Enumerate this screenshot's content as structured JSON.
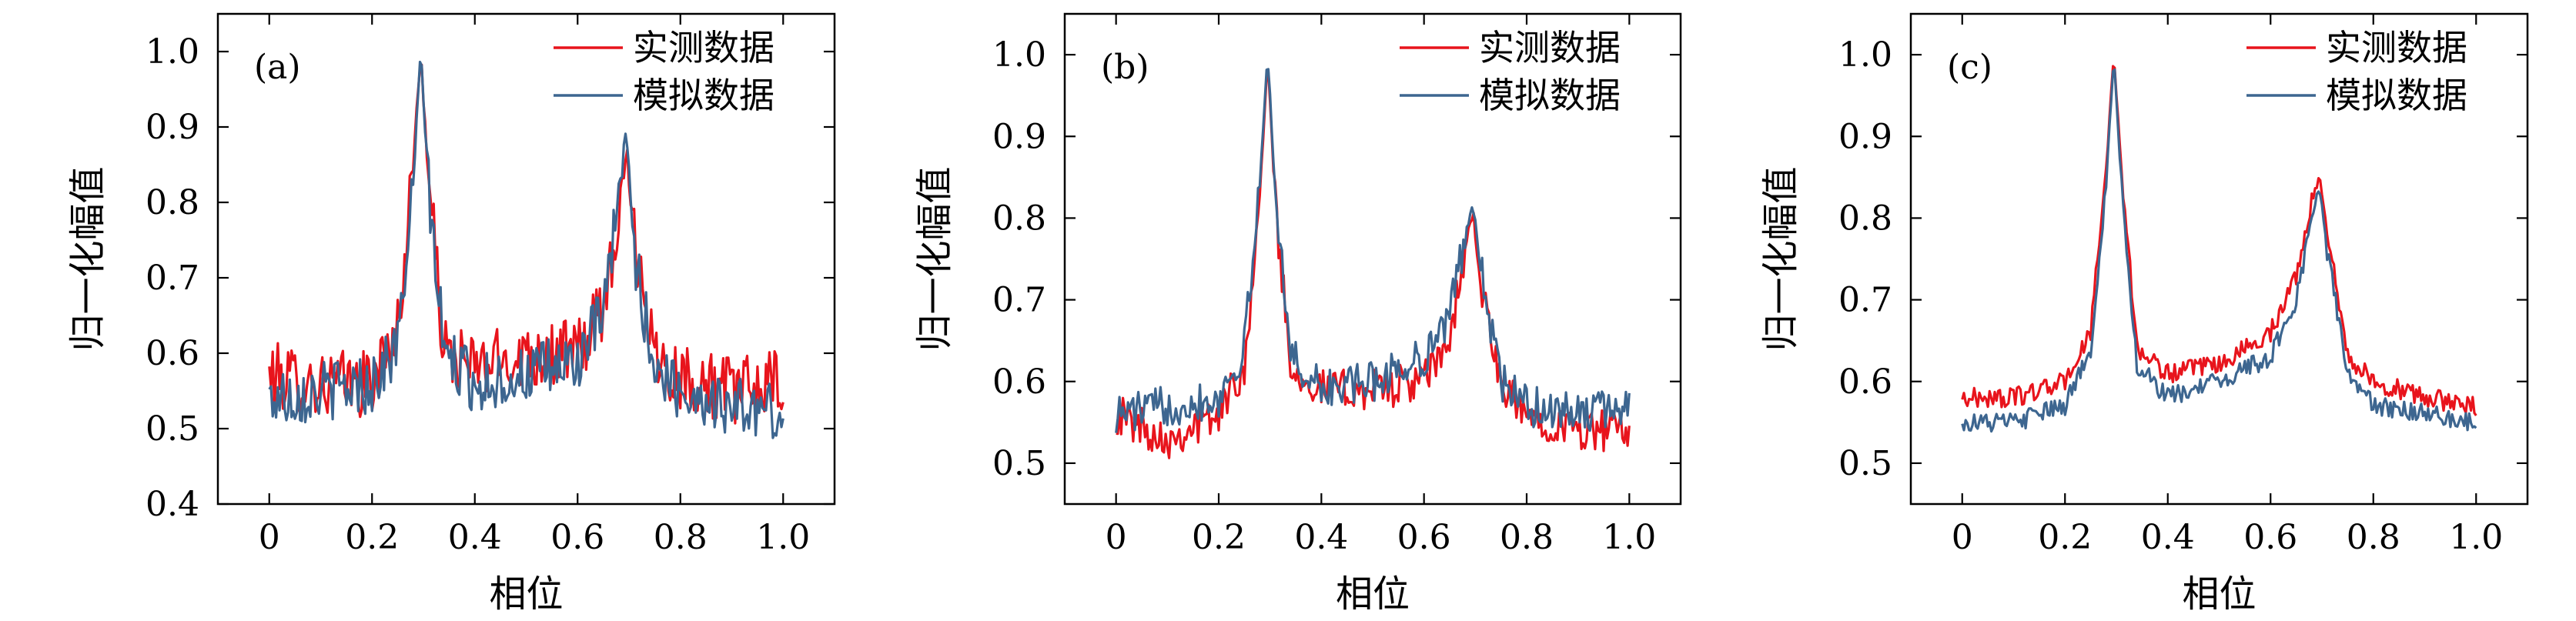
{
  "colors": {
    "measured": "#e8141c",
    "simulated": "#3d6690"
  },
  "chart_data": [
    {
      "type": "line",
      "panel_label": "(a)",
      "xlabel": "相位",
      "ylabel": "归一化幅值",
      "xlim": [
        -0.1,
        1.1
      ],
      "ylim": [
        0.4,
        1.05
      ],
      "xticks": [
        0,
        0.2,
        0.4,
        0.6,
        0.8,
        1.0
      ],
      "xtick_labels": [
        "0",
        "0.2",
        "0.4",
        "0.6",
        "0.8",
        "1.0"
      ],
      "yticks": [
        0.4,
        0.5,
        0.6,
        0.7,
        0.8,
        0.9,
        1.0
      ],
      "ytick_labels": [
        "0.4",
        "0.5",
        "0.6",
        "0.7",
        "0.8",
        "0.9",
        "1.0"
      ],
      "legend": [
        "实测数据",
        "模拟数据"
      ],
      "legend_position": "top-right",
      "series": [
        {
          "name": "实测数据",
          "x": [
            0,
            0.1,
            0.2,
            0.25,
            0.28,
            0.295,
            0.31,
            0.34,
            0.4,
            0.5,
            0.6,
            0.65,
            0.68,
            0.695,
            0.71,
            0.75,
            0.8,
            0.9,
            1.0
          ],
          "y": [
            0.57,
            0.56,
            0.56,
            0.63,
            0.85,
            1.0,
            0.83,
            0.6,
            0.58,
            0.6,
            0.6,
            0.66,
            0.79,
            0.87,
            0.76,
            0.6,
            0.57,
            0.55,
            0.56
          ]
        },
        {
          "name": "模拟数据",
          "x": [
            0,
            0.1,
            0.2,
            0.25,
            0.28,
            0.295,
            0.31,
            0.34,
            0.4,
            0.5,
            0.6,
            0.65,
            0.68,
            0.695,
            0.71,
            0.75,
            0.8,
            0.9,
            1.0
          ],
          "y": [
            0.54,
            0.55,
            0.56,
            0.61,
            0.82,
            1.0,
            0.82,
            0.6,
            0.56,
            0.57,
            0.59,
            0.65,
            0.8,
            0.9,
            0.73,
            0.58,
            0.55,
            0.53,
            0.52
          ]
        }
      ]
    },
    {
      "type": "line",
      "panel_label": "(b)",
      "xlabel": "相位",
      "ylabel": "归一化幅值",
      "xlim": [
        -0.1,
        1.1
      ],
      "ylim": [
        0.45,
        1.05
      ],
      "xticks": [
        0,
        0.2,
        0.4,
        0.6,
        0.8,
        1.0
      ],
      "xtick_labels": [
        "0",
        "0.2",
        "0.4",
        "0.6",
        "0.8",
        "1.0"
      ],
      "yticks": [
        0.5,
        0.6,
        0.7,
        0.8,
        0.9,
        1.0
      ],
      "ytick_labels": [
        "0.5",
        "0.6",
        "0.7",
        "0.8",
        "0.9",
        "1.0"
      ],
      "legend": [
        "实测数据",
        "模拟数据"
      ],
      "legend_position": "top-right",
      "series": [
        {
          "name": "实测数据",
          "x": [
            0,
            0.1,
            0.2,
            0.25,
            0.28,
            0.295,
            0.31,
            0.34,
            0.4,
            0.5,
            0.6,
            0.65,
            0.68,
            0.695,
            0.71,
            0.75,
            0.8,
            0.9,
            1.0
          ],
          "y": [
            0.56,
            0.53,
            0.56,
            0.62,
            0.82,
            1.0,
            0.82,
            0.62,
            0.59,
            0.59,
            0.6,
            0.65,
            0.76,
            0.81,
            0.72,
            0.59,
            0.56,
            0.54,
            0.54
          ]
        },
        {
          "name": "模拟数据",
          "x": [
            0,
            0.1,
            0.2,
            0.25,
            0.28,
            0.295,
            0.31,
            0.34,
            0.4,
            0.5,
            0.6,
            0.65,
            0.68,
            0.695,
            0.71,
            0.75,
            0.8,
            0.9,
            1.0
          ],
          "y": [
            0.56,
            0.57,
            0.58,
            0.64,
            0.84,
            1.0,
            0.84,
            0.63,
            0.59,
            0.6,
            0.63,
            0.68,
            0.78,
            0.82,
            0.74,
            0.6,
            0.57,
            0.56,
            0.57
          ]
        }
      ]
    },
    {
      "type": "line",
      "panel_label": "(c)",
      "xlabel": "相位",
      "ylabel": "归一化幅值",
      "xlim": [
        -0.1,
        1.1
      ],
      "ylim": [
        0.45,
        1.05
      ],
      "xticks": [
        0,
        0.2,
        0.4,
        0.6,
        0.8,
        1.0
      ],
      "xtick_labels": [
        "0",
        "0.2",
        "0.4",
        "0.6",
        "0.8",
        "1.0"
      ],
      "yticks": [
        0.5,
        0.6,
        0.7,
        0.8,
        0.9,
        1.0
      ],
      "ytick_labels": [
        "0.5",
        "0.6",
        "0.7",
        "0.8",
        "0.9",
        "1.0"
      ],
      "legend": [
        "实测数据",
        "模拟数据"
      ],
      "legend_position": "top-right",
      "series": [
        {
          "name": "实测数据",
          "x": [
            0,
            0.1,
            0.2,
            0.25,
            0.28,
            0.295,
            0.31,
            0.34,
            0.4,
            0.5,
            0.6,
            0.65,
            0.68,
            0.695,
            0.71,
            0.75,
            0.8,
            0.9,
            1.0
          ],
          "y": [
            0.58,
            0.58,
            0.6,
            0.66,
            0.86,
            1.0,
            0.86,
            0.64,
            0.61,
            0.62,
            0.66,
            0.73,
            0.82,
            0.85,
            0.79,
            0.63,
            0.6,
            0.58,
            0.57
          ]
        },
        {
          "name": "模拟数据",
          "x": [
            0,
            0.1,
            0.2,
            0.25,
            0.28,
            0.295,
            0.31,
            0.34,
            0.4,
            0.5,
            0.6,
            0.65,
            0.68,
            0.695,
            0.71,
            0.75,
            0.8,
            0.9,
            1.0
          ],
          "y": [
            0.55,
            0.55,
            0.57,
            0.64,
            0.84,
            1.0,
            0.84,
            0.62,
            0.58,
            0.6,
            0.63,
            0.7,
            0.8,
            0.84,
            0.76,
            0.61,
            0.57,
            0.56,
            0.55
          ]
        }
      ]
    }
  ]
}
